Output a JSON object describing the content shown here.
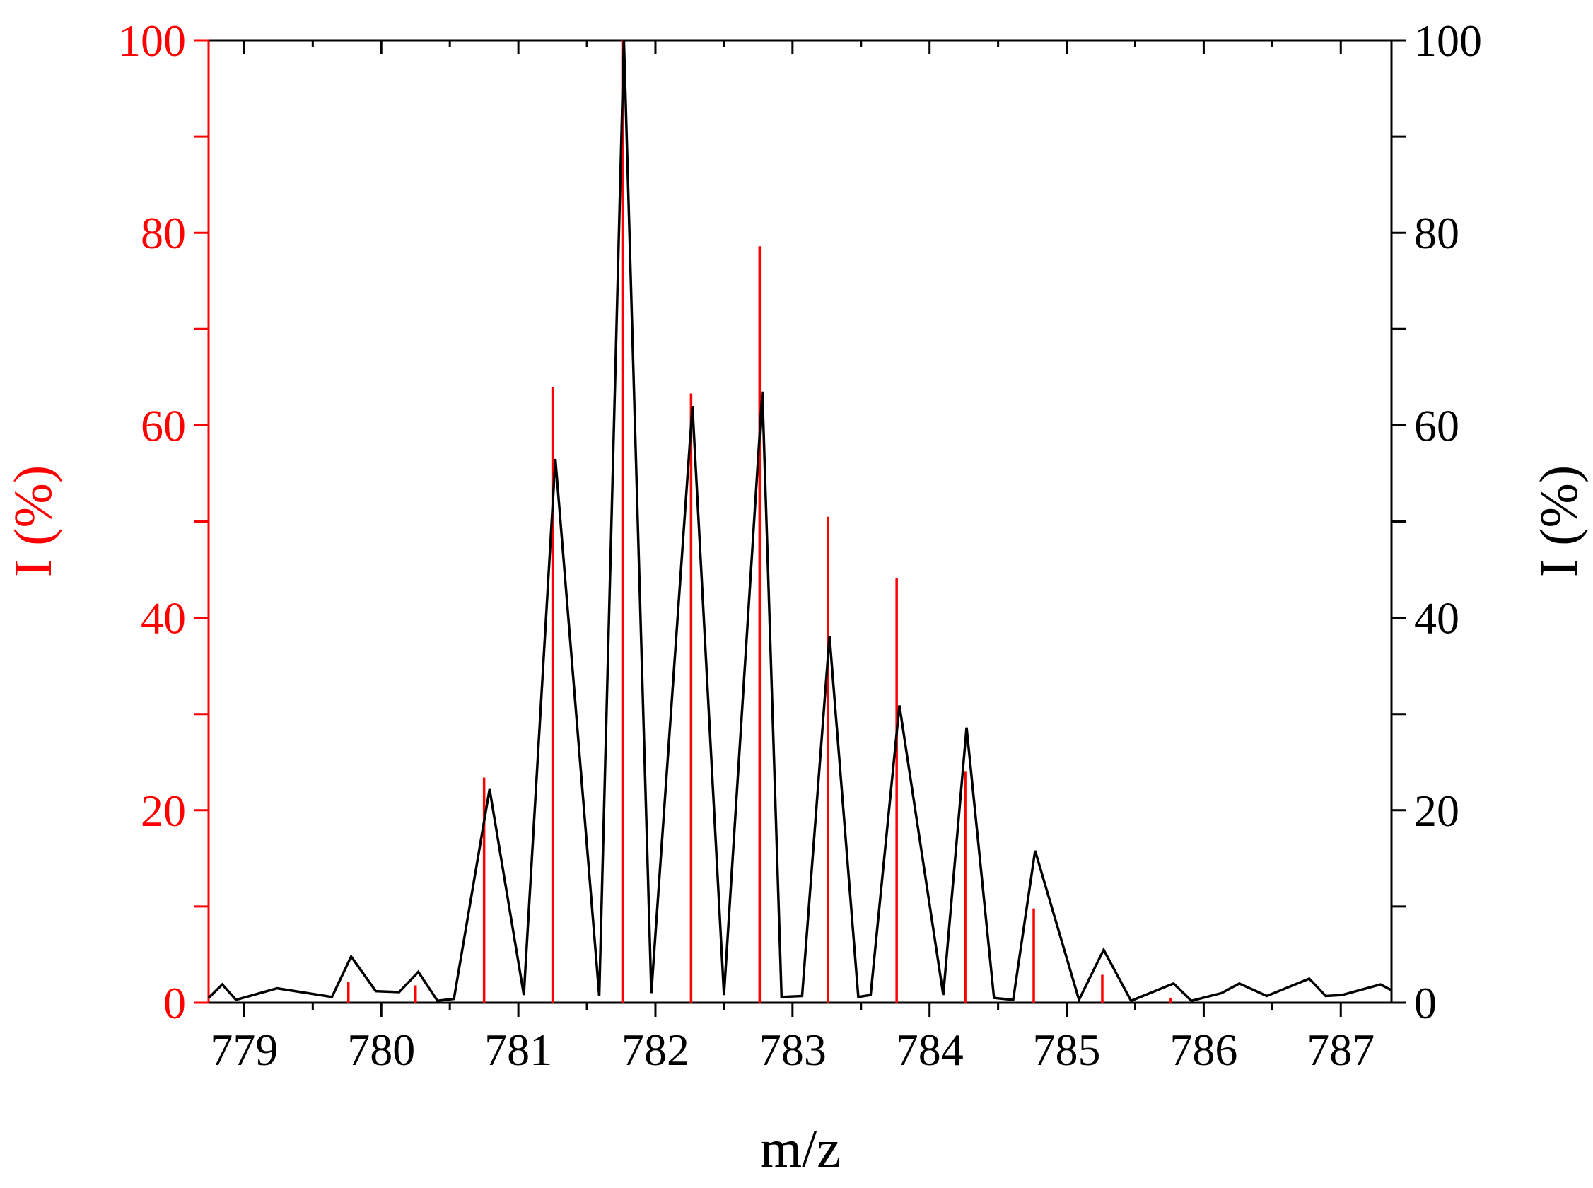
{
  "chart_data": {
    "type": "line",
    "xlabel": "m/z",
    "ylabel": "I (%)",
    "y2label": "I (%)",
    "xlim": [
      778.74,
      787.37
    ],
    "xticks": [
      779,
      780,
      781,
      782,
      783,
      784,
      785,
      786,
      787
    ],
    "ylim": [
      0,
      100
    ],
    "yticks": [
      0,
      20,
      40,
      60,
      80,
      100
    ],
    "y2lim": [
      0,
      100
    ],
    "y2ticks": [
      0,
      20,
      40,
      60,
      80,
      100
    ],
    "ycolor": "#ff0000",
    "y2color": "#000000",
    "series": [
      {
        "type": "stem",
        "color": "#ff0000",
        "axis": "y",
        "x": [
          779.76,
          780.25,
          780.75,
          781.25,
          781.76,
          782.26,
          782.76,
          783.26,
          783.76,
          784.26,
          784.76,
          785.26,
          785.76
        ],
        "values": [
          2.2,
          1.8,
          23.4,
          64.0,
          100,
          63.3,
          78.6,
          50.5,
          44.1,
          24,
          9.8,
          2.9,
          0.5
        ]
      },
      {
        "type": "line",
        "color": "#000000",
        "axis": "y2",
        "x": [
          778.74,
          778.84,
          778.94,
          779.24,
          779.64,
          779.78,
          779.96,
          780.13,
          780.27,
          780.41,
          780.53,
          780.79,
          781.04,
          781.27,
          781.59,
          781.77,
          781.97,
          782.27,
          782.5,
          782.78,
          782.92,
          783.07,
          783.27,
          783.48,
          783.57,
          783.78,
          784.1,
          784.27,
          784.47,
          784.61,
          784.77,
          785.09,
          785.27,
          785.47,
          785.78,
          785.91,
          786.13,
          786.26,
          786.46,
          786.77,
          786.89,
          787.01,
          787.29,
          787.37
        ],
        "values": [
          0.5,
          1.9,
          0.3,
          1.5,
          0.6,
          4.8,
          1.2,
          1.1,
          3.2,
          0.2,
          0.4,
          22.2,
          0.8,
          56.5,
          0.7,
          100,
          1.0,
          62.0,
          0.8,
          63.5,
          0.6,
          0.7,
          38.1,
          0.6,
          0.8,
          30.9,
          0.8,
          28.6,
          0.5,
          0.3,
          15.8,
          0.3,
          5.5,
          0.2,
          2.0,
          0.2,
          1.0,
          2.0,
          0.7,
          2.5,
          0.7,
          0.8,
          1.9,
          1.3
        ]
      }
    ]
  }
}
